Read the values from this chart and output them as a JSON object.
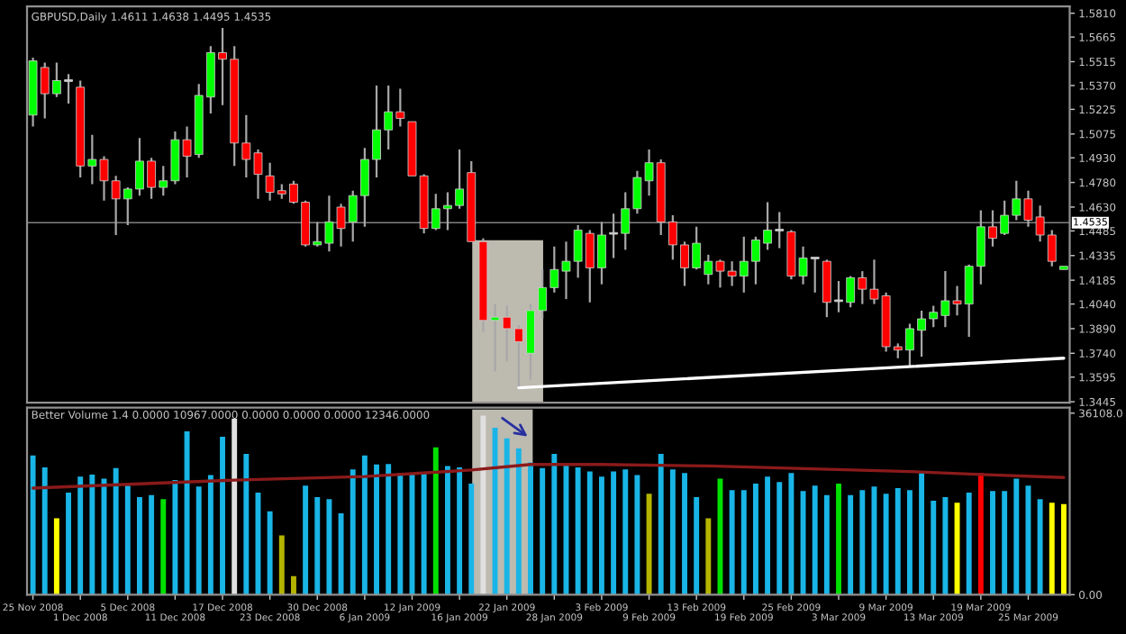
{
  "chart_data": [
    {
      "type": "candlestick",
      "title": "GBPUSD,Daily 1.4611 1.4638 1.4495 1.4535",
      "tick_labels": "y",
      "grid": false,
      "categories": [
        null,
        null,
        null,
        null,
        null,
        null,
        null,
        null,
        null,
        null,
        null,
        null,
        null,
        null,
        null,
        null,
        null,
        null,
        null,
        null,
        null,
        null,
        null,
        null,
        null,
        null,
        null,
        null,
        null,
        null,
        null,
        null,
        null,
        null,
        null,
        null,
        null,
        null,
        null,
        null,
        null,
        null,
        null,
        null,
        null,
        null,
        null,
        null,
        null,
        null,
        null,
        null,
        null,
        null,
        null,
        null,
        null,
        null,
        null,
        null,
        null,
        null,
        null,
        null,
        null,
        null,
        null,
        null,
        null,
        null,
        null,
        null,
        null,
        null,
        null,
        null,
        null,
        null,
        null,
        null,
        null,
        null,
        null,
        null,
        null,
        null,
        null,
        null
      ],
      "ohlc": [
        [
          1.519,
          1.554,
          1.512,
          1.552
        ],
        [
          1.548,
          1.551,
          1.517,
          1.532
        ],
        [
          1.532,
          1.551,
          1.53,
          1.54
        ],
        [
          1.54,
          1.544,
          1.526,
          1.54
        ],
        [
          1.536,
          1.54,
          1.481,
          1.488
        ],
        [
          1.488,
          1.507,
          1.477,
          1.492
        ],
        [
          1.492,
          1.494,
          1.467,
          1.479
        ],
        [
          1.479,
          1.482,
          1.446,
          1.468
        ],
        [
          1.468,
          1.475,
          1.452,
          1.474
        ],
        [
          1.474,
          1.505,
          1.47,
          1.491
        ],
        [
          1.491,
          1.493,
          1.468,
          1.475
        ],
        [
          1.475,
          1.488,
          1.47,
          1.479
        ],
        [
          1.479,
          1.509,
          1.477,
          1.504
        ],
        [
          1.504,
          1.512,
          1.481,
          1.494
        ],
        [
          1.495,
          1.538,
          1.493,
          1.531
        ],
        [
          1.53,
          1.561,
          1.52,
          1.557
        ],
        [
          1.557,
          1.572,
          1.525,
          1.553
        ],
        [
          1.553,
          1.561,
          1.488,
          1.502
        ],
        [
          1.502,
          1.519,
          1.481,
          1.492
        ],
        [
          1.496,
          1.498,
          1.468,
          1.483
        ],
        [
          1.482,
          1.49,
          1.467,
          1.472
        ],
        [
          1.473,
          1.477,
          1.468,
          1.471
        ],
        [
          1.477,
          1.479,
          1.465,
          1.466
        ],
        [
          1.466,
          1.467,
          1.439,
          1.44
        ],
        [
          1.44,
          1.454,
          1.439,
          1.442
        ],
        [
          1.441,
          1.47,
          1.436,
          1.454
        ],
        [
          1.463,
          1.465,
          1.439,
          1.45
        ],
        [
          1.454,
          1.473,
          1.442,
          1.47
        ],
        [
          1.47,
          1.499,
          1.451,
          1.492
        ],
        [
          1.492,
          1.537,
          1.481,
          1.51
        ],
        [
          1.51,
          1.537,
          1.498,
          1.521
        ],
        [
          1.521,
          1.535,
          1.512,
          1.517
        ],
        [
          1.515,
          1.515,
          1.482,
          1.482
        ],
        [
          1.482,
          1.483,
          1.447,
          1.45
        ],
        [
          1.45,
          1.471,
          1.449,
          1.462
        ],
        [
          1.462,
          1.472,
          1.449,
          1.464
        ],
        [
          1.464,
          1.498,
          1.462,
          1.474
        ],
        [
          1.484,
          1.491,
          1.442,
          1.442
        ],
        [
          1.442,
          1.444,
          1.387,
          1.394
        ],
        [
          1.394,
          1.404,
          1.363,
          1.396
        ],
        [
          1.396,
          1.403,
          1.369,
          1.389
        ],
        [
          1.389,
          1.391,
          1.352,
          1.381
        ],
        [
          1.374,
          1.404,
          1.358,
          1.4
        ],
        [
          1.4,
          1.425,
          1.395,
          1.414
        ],
        [
          1.414,
          1.439,
          1.411,
          1.425
        ],
        [
          1.424,
          1.442,
          1.407,
          1.43
        ],
        [
          1.43,
          1.452,
          1.42,
          1.449
        ],
        [
          1.447,
          1.449,
          1.405,
          1.426
        ],
        [
          1.426,
          1.454,
          1.416,
          1.446
        ],
        [
          1.447,
          1.459,
          1.432,
          1.447
        ],
        [
          1.447,
          1.472,
          1.437,
          1.462
        ],
        [
          1.462,
          1.485,
          1.459,
          1.481
        ],
        [
          1.479,
          1.498,
          1.47,
          1.49
        ],
        [
          1.49,
          1.492,
          1.446,
          1.454
        ],
        [
          1.454,
          1.458,
          1.431,
          1.44
        ],
        [
          1.44,
          1.442,
          1.415,
          1.426
        ],
        [
          1.426,
          1.451,
          1.425,
          1.441
        ],
        [
          1.422,
          1.434,
          1.416,
          1.43
        ],
        [
          1.43,
          1.431,
          1.414,
          1.424
        ],
        [
          1.424,
          1.43,
          1.415,
          1.421
        ],
        [
          1.421,
          1.445,
          1.411,
          1.43
        ],
        [
          1.43,
          1.445,
          1.416,
          1.443
        ],
        [
          1.441,
          1.466,
          1.437,
          1.449
        ],
        [
          1.449,
          1.46,
          1.438,
          1.449
        ],
        [
          1.448,
          1.449,
          1.419,
          1.421
        ],
        [
          1.421,
          1.439,
          1.416,
          1.432
        ],
        [
          1.432,
          1.432,
          1.411,
          1.432
        ],
        [
          1.43,
          1.431,
          1.396,
          1.405
        ],
        [
          1.406,
          1.418,
          1.399,
          1.406
        ],
        [
          1.405,
          1.421,
          1.402,
          1.42
        ],
        [
          1.42,
          1.424,
          1.404,
          1.413
        ],
        [
          1.413,
          1.431,
          1.404,
          1.407
        ],
        [
          1.409,
          1.411,
          1.375,
          1.378
        ],
        [
          1.378,
          1.38,
          1.371,
          1.376
        ],
        [
          1.376,
          1.392,
          1.366,
          1.389
        ],
        [
          1.388,
          1.4,
          1.372,
          1.395
        ],
        [
          1.395,
          1.403,
          1.39,
          1.399
        ],
        [
          1.397,
          1.424,
          1.39,
          1.406
        ],
        [
          1.406,
          1.415,
          1.397,
          1.404
        ],
        [
          1.404,
          1.428,
          1.384,
          1.427
        ],
        [
          1.427,
          1.461,
          1.416,
          1.451
        ],
        [
          1.451,
          1.461,
          1.439,
          1.444
        ],
        [
          1.447,
          1.467,
          1.446,
          1.458
        ],
        [
          1.458,
          1.479,
          1.455,
          1.468
        ],
        [
          1.468,
          1.473,
          1.451,
          1.455
        ],
        [
          1.457,
          1.464,
          1.442,
          1.446
        ],
        [
          1.446,
          1.449,
          1.427,
          1.43
        ],
        [
          1.425,
          1.427,
          1.425,
          1.427
        ]
      ],
      "series": [
        {
          "type": "line",
          "color": "#ffffff",
          "values": [
            null,
            null,
            null,
            null,
            null,
            null,
            null,
            null,
            null,
            null,
            null,
            null,
            null,
            null,
            null,
            null,
            null,
            null,
            null,
            null,
            null,
            null,
            null,
            null,
            null,
            null,
            null,
            null,
            null,
            null,
            null,
            null,
            null,
            null,
            null,
            null,
            null,
            null,
            null,
            null,
            null,
            1.353,
            null,
            null,
            null,
            null,
            null,
            null,
            null,
            null,
            null,
            null,
            null,
            null,
            null,
            null,
            null,
            null,
            null,
            null,
            null,
            null,
            null,
            null,
            null,
            null,
            null,
            null,
            null,
            null,
            null,
            null,
            null,
            null,
            null,
            null,
            null,
            null,
            null,
            null,
            null,
            null,
            null,
            null,
            null,
            null,
            null,
            1.371
          ]
        }
      ],
      "ylim": [
        1.344,
        1.5852
      ],
      "yticks": [
        {
          "value": 1.581,
          "label": "1.5810"
        },
        {
          "value": 1.5665,
          "label": "1.5665"
        },
        {
          "value": 1.5515,
          "label": "1.5515"
        },
        {
          "value": 1.537,
          "label": "1.5370"
        },
        {
          "value": 1.5225,
          "label": "1.5225"
        },
        {
          "value": 1.5075,
          "label": "1.5075"
        },
        {
          "value": 1.493,
          "label": "1.4930"
        },
        {
          "value": 1.478,
          "label": "1.4780"
        },
        {
          "value": 1.463,
          "label": "1.4630"
        },
        {
          "value": 1.4485,
          "label": "1.4485"
        },
        {
          "value": 1.4335,
          "label": "1.4335"
        },
        {
          "value": 1.4185,
          "label": "1.4185"
        },
        {
          "value": 1.404,
          "label": "1.4040"
        },
        {
          "value": 1.389,
          "label": "1.3890"
        },
        {
          "value": 1.374,
          "label": "1.3740"
        },
        {
          "value": 1.3595,
          "label": "1.3595"
        },
        {
          "value": 1.3445,
          "label": "1.3445"
        }
      ],
      "ref_lines": [
        {
          "axis": "y",
          "value": 1.4535,
          "label": "1.4535",
          "color": "#808080"
        }
      ]
    },
    {
      "type": "bar",
      "title": "Better Volume 1.4 0.0000 10967.0000 0.0000 0.0000 0.0000 12346.0000",
      "grid": false,
      "categories": [
        "25 Nov 2008",
        null,
        null,
        null,
        "1 Dec 2008",
        null,
        null,
        null,
        "5 Dec 2008",
        null,
        null,
        null,
        "11 Dec 2008",
        null,
        null,
        null,
        "17 Dec 2008",
        null,
        null,
        null,
        "23 Dec 2008",
        null,
        null,
        null,
        "30 Dec 2008",
        null,
        null,
        null,
        "6 Jan 2009",
        null,
        null,
        null,
        "12 Jan 2009",
        null,
        null,
        null,
        "16 Jan 2009",
        null,
        null,
        null,
        "22 Jan 2009",
        null,
        null,
        null,
        "28 Jan 2009",
        null,
        null,
        null,
        "3 Feb 2009",
        null,
        null,
        null,
        "9 Feb 2009",
        null,
        null,
        null,
        "13 Feb 2009",
        null,
        null,
        null,
        "19 Feb 2009",
        null,
        null,
        null,
        "25 Feb 2009",
        null,
        null,
        null,
        "3 Mar 2009",
        null,
        null,
        null,
        "9 Mar 2009",
        null,
        null,
        null,
        "13 Mar 2009",
        null,
        null,
        null,
        "19 Mar 2009",
        null,
        null,
        null,
        "25 Mar 2009",
        null,
        null,
        null
      ],
      "series": [
        {
          "type": "bar",
          "colors": [
            "#19b5e6",
            "#19b5e6",
            "#ffff00",
            "#19b5e6",
            "#19b5e6",
            "#19b5e6",
            "#19b5e6",
            "#19b5e6",
            "#19b5e6",
            "#19b5e6",
            "#19b5e6",
            "#00e000",
            "#19b5e6",
            "#19b5e6",
            "#19b5e6",
            "#19b5e6",
            "#19b5e6",
            "#e0e0e0",
            "#19b5e6",
            "#19b5e6",
            "#19b5e6",
            "#b4b400",
            "#b4b400",
            "#19b5e6",
            "#19b5e6",
            "#19b5e6",
            "#19b5e6",
            "#19b5e6",
            "#19b5e6",
            "#19b5e6",
            "#19b5e6",
            "#19b5e6",
            "#19b5e6",
            "#19b5e6",
            "#00e000",
            "#19b5e6",
            "#19b5e6",
            "#19b5e6",
            "#e0e0e0",
            "#19b5e6",
            "#19b5e6",
            "#19b5e6",
            "#19b5e6",
            "#19b5e6",
            "#19b5e6",
            "#19b5e6",
            "#19b5e6",
            "#19b5e6",
            "#19b5e6",
            "#19b5e6",
            "#19b5e6",
            "#19b5e6",
            "#b4b400",
            "#19b5e6",
            "#19b5e6",
            "#19b5e6",
            "#19b5e6",
            "#b4b400",
            "#00e000",
            "#19b5e6",
            "#19b5e6",
            "#19b5e6",
            "#19b5e6",
            "#19b5e6",
            "#19b5e6",
            "#19b5e6",
            "#19b5e6",
            "#19b5e6",
            "#00e000",
            "#19b5e6",
            "#19b5e6",
            "#19b5e6",
            "#19b5e6",
            "#19b5e6",
            "#19b5e6",
            "#19b5e6",
            "#19b5e6",
            "#19b5e6",
            "#ffff00",
            "#19b5e6",
            "#ff0000",
            "#19b5e6",
            "#19b5e6",
            "#19b5e6",
            "#19b5e6",
            "#19b5e6",
            "#ffff00",
            "#ffff00"
          ],
          "values": [
            27700,
            25300,
            15200,
            20300,
            23500,
            23900,
            23100,
            25200,
            21700,
            19400,
            19800,
            19000,
            22800,
            32500,
            21500,
            23800,
            31400,
            35000,
            28000,
            20300,
            16600,
            11800,
            3700,
            21700,
            19400,
            19000,
            16200,
            24900,
            27700,
            25900,
            26000,
            24200,
            24200,
            24200,
            29300,
            25600,
            25300,
            22100,
            35600,
            33200,
            31100,
            29100,
            26300,
            25200,
            28000,
            25900,
            25300,
            24500,
            23500,
            24500,
            24900,
            23800,
            20100,
            28000,
            24900,
            24200,
            19400,
            15200,
            23100,
            20800,
            20800,
            22100,
            23500,
            22400,
            24200,
            20600,
            21700,
            19800,
            22100,
            19800,
            20800,
            21500,
            20100,
            21200,
            20800,
            24200,
            18700,
            19400,
            18300,
            20300,
            24200,
            20600,
            20600,
            23100,
            21700,
            19000,
            18300,
            18000
          ]
        },
        {
          "type": "line",
          "color": "#8b1a1a",
          "values": [
            21200,
            null,
            null,
            null,
            null,
            null,
            null,
            null,
            null,
            null,
            null,
            null,
            null,
            null,
            null,
            null,
            null,
            22800,
            null,
            null,
            null,
            null,
            null,
            null,
            null,
            null,
            null,
            null,
            23500,
            null,
            null,
            null,
            null,
            null,
            null,
            null,
            null,
            24800,
            null,
            null,
            null,
            null,
            25900,
            null,
            null,
            null,
            null,
            null,
            25900,
            null,
            null,
            null,
            null,
            null,
            null,
            null,
            null,
            25600,
            null,
            null,
            null,
            null,
            null,
            null,
            null,
            null,
            null,
            null,
            null,
            null,
            null,
            null,
            null,
            null,
            24500,
            null,
            null,
            null,
            null,
            null,
            23900,
            null,
            null,
            null,
            null,
            null,
            null,
            23300
          ]
        }
      ],
      "ylim": [
        0,
        37200
      ],
      "yticks": [
        {
          "value": 36108,
          "label": "36108.0"
        },
        {
          "value": 0,
          "label": "0.00"
        }
      ]
    }
  ]
}
